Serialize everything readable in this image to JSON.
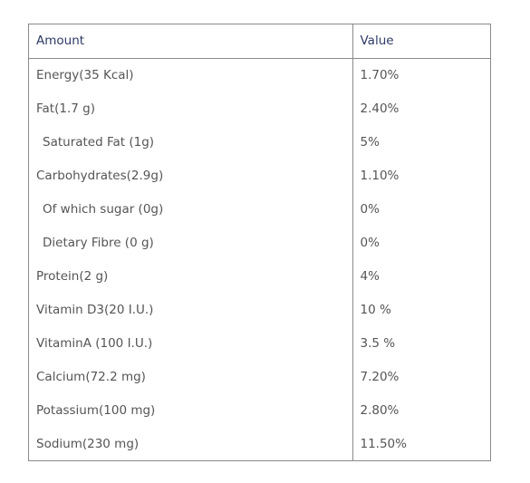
{
  "table": {
    "headers": {
      "amount": "Amount",
      "value": "Value"
    },
    "rows": [
      {
        "amount": "Energy(35 Kcal)",
        "value": "1.70%",
        "indent": false
      },
      {
        "amount": "Fat(1.7 g)",
        "value": "2.40%",
        "indent": false
      },
      {
        "amount": "Saturated Fat (1g)",
        "value": "5%",
        "indent": true
      },
      {
        "amount": "Carbohydrates(2.9g)",
        "value": "1.10%",
        "indent": false
      },
      {
        "amount": "Of which sugar (0g)",
        "value": "0%",
        "indent": true
      },
      {
        "amount": "Dietary Fibre (0 g)",
        "value": "0%",
        "indent": true
      },
      {
        "amount": "Protein(2 g)",
        "value": "4%",
        "indent": false
      },
      {
        "amount": "Vitamin D3(20 I.U.)",
        "value": "10 %",
        "indent": false
      },
      {
        "amount": "VitaminA (100 I.U.)",
        "value": "3.5 %",
        "indent": false
      },
      {
        "amount": "Calcium(72.2 mg)",
        "value": "7.20%",
        "indent": false
      },
      {
        "amount": "Potassium(100 mg)",
        "value": "2.80%",
        "indent": false
      },
      {
        "amount": "Sodium(230 mg)",
        "value": "11.50%",
        "indent": false
      }
    ]
  },
  "colors": {
    "header_text": "#2c3a66",
    "body_text": "#555555",
    "border": "#8a8a8a"
  }
}
